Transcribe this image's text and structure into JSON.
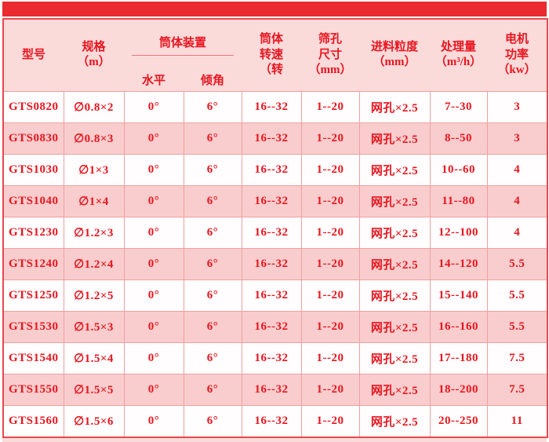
{
  "colors": {
    "top_bar": "#ea2b2f",
    "header_bg": "#fbdada",
    "row_pink": "#f9cdcd",
    "row_white": "#fffdfd",
    "text_red": "#e8151f",
    "inner_border": "#efa0a0",
    "outer_border": "#e6494d"
  },
  "chart_data": {
    "type": "table",
    "title": "",
    "headers": {
      "model": "型号",
      "spec": "规格\n（m）",
      "cylinder_group": "筒体装置",
      "horizontal": "水平",
      "incline": "倾角",
      "speed": "筒体\n转速\n（转",
      "screen_hole": "筛孔\n尺寸\n（mm）",
      "feed_size": "进料粒度\n（mm）",
      "capacity": "处理量\n（m³/h）",
      "motor_power": "电机\n功率\n（kw）"
    },
    "rows": [
      [
        "GTS0820",
        "∅0.8×2",
        "0°",
        "6°",
        "16--32",
        "1--20",
        "网孔×2.5",
        "7--30",
        "3"
      ],
      [
        "GTS0830",
        "∅0.8×3",
        "0°",
        "6°",
        "16--32",
        "1--20",
        "网孔×2.5",
        "8--50",
        "3"
      ],
      [
        "GTS1030",
        "∅1×3",
        "0°",
        "6°",
        "16--32",
        "1--20",
        "网孔×2.5",
        "10--60",
        "4"
      ],
      [
        "GTS1040",
        "∅1×4",
        "0°",
        "6°",
        "16--32",
        "1--20",
        "网孔×2.5",
        "11--80",
        "4"
      ],
      [
        "GTS1230",
        "∅1.2×3",
        "0°",
        "6°",
        "16--32",
        "1--20",
        "网孔×2.5",
        "12--100",
        "4"
      ],
      [
        "GTS1240",
        "∅1.2×4",
        "0°",
        "6°",
        "16--32",
        "1--20",
        "网孔×2.5",
        "14--120",
        "5.5"
      ],
      [
        "GTS1250",
        "∅1.2×5",
        "0°",
        "6°",
        "16--32",
        "1--20",
        "网孔×2.5",
        "15--140",
        "5.5"
      ],
      [
        "GTS1530",
        "∅1.5×3",
        "0°",
        "6°",
        "16--32",
        "1--20",
        "网孔×2.5",
        "16--160",
        "5.5"
      ],
      [
        "GTS1540",
        "∅1.5×4",
        "0°",
        "6°",
        "16--32",
        "1--20",
        "网孔×2.5",
        "17--180",
        "7.5"
      ],
      [
        "GTS1550",
        "∅1.5×5",
        "0°",
        "6°",
        "16--32",
        "1--20",
        "网孔×2.5",
        "18--200",
        "7.5"
      ],
      [
        "GTS1560",
        "∅1.5×6",
        "0°",
        "6°",
        "16--32",
        "1--20",
        "网孔×2.5",
        "20--250",
        "11"
      ]
    ]
  }
}
